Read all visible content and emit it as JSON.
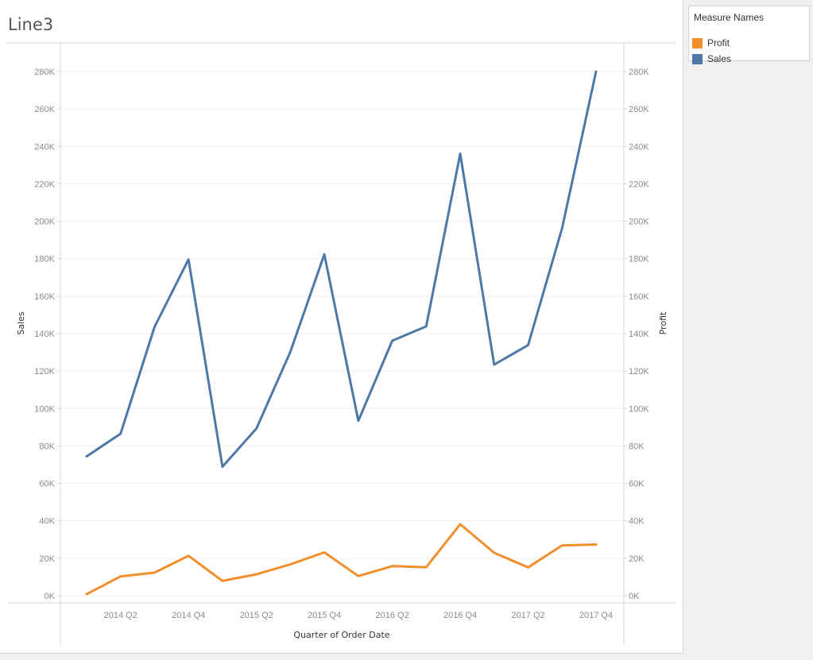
{
  "title": "Line3",
  "legend": {
    "title": "Measure Names",
    "items": [
      {
        "label": "Profit",
        "color": "#f28e2b"
      },
      {
        "label": "Sales",
        "color": "#4e79a7"
      }
    ]
  },
  "chart_data": {
    "type": "line",
    "title": "Line3",
    "xlabel": "Quarter of Order Date",
    "ylabel_left": "Sales",
    "ylabel_right": "Profit",
    "categories": [
      "2014 Q1",
      "2014 Q2",
      "2014 Q3",
      "2014 Q4",
      "2015 Q1",
      "2015 Q2",
      "2015 Q3",
      "2015 Q4",
      "2016 Q1",
      "2016 Q2",
      "2016 Q3",
      "2016 Q4",
      "2017 Q1",
      "2017 Q2",
      "2017 Q3",
      "2017 Q4"
    ],
    "x_tick_labels": [
      "2014 Q2",
      "2014 Q4",
      "2015 Q2",
      "2015 Q4",
      "2016 Q2",
      "2016 Q4",
      "2017 Q2",
      "2017 Q4"
    ],
    "ylim": [
      0,
      280000
    ],
    "y_ticks": [
      0,
      20000,
      40000,
      60000,
      80000,
      100000,
      120000,
      140000,
      160000,
      180000,
      200000,
      220000,
      240000,
      260000,
      280000
    ],
    "y_tick_labels": [
      "0K",
      "20K",
      "40K",
      "60K",
      "80K",
      "100K",
      "120K",
      "140K",
      "160K",
      "180K",
      "200K",
      "220K",
      "240K",
      "260K",
      "280K"
    ],
    "grid": true,
    "legend_position": "top-right, outside plot",
    "series": [
      {
        "name": "Sales",
        "color": "#4e79a7",
        "axis": "left",
        "values": [
          74400,
          86500,
          143600,
          179600,
          68900,
          89300,
          130300,
          182300,
          93400,
          136200,
          143800,
          236100,
          123400,
          133800,
          196300,
          280000
        ]
      },
      {
        "name": "Profit",
        "color": "#f28e2b",
        "axis": "right",
        "values": [
          800,
          10300,
          12300,
          21300,
          7900,
          11400,
          16700,
          23100,
          10500,
          15800,
          15200,
          38200,
          22900,
          15100,
          26800,
          27300
        ]
      }
    ]
  }
}
